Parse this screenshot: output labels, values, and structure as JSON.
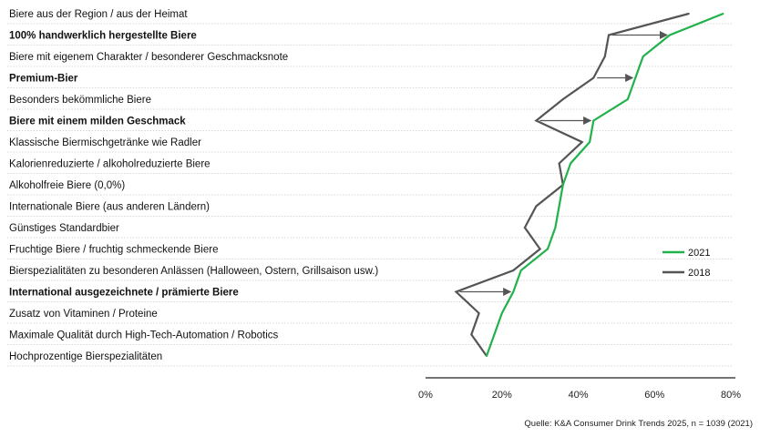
{
  "chart_data": {
    "type": "line",
    "orientation": "horizontal",
    "categories": [
      {
        "label": "Biere aus der Region / aus der Heimat",
        "bold": false
      },
      {
        "label": "100% handwerklich hergestellte Biere",
        "bold": true
      },
      {
        "label": "Biere mit eigenem Charakter / besonderer Geschmacksnote",
        "bold": false
      },
      {
        "label": "Premium-Bier",
        "bold": true
      },
      {
        "label": "Besonders bekömmliche Biere",
        "bold": false
      },
      {
        "label": "Biere mit einem milden Geschmack",
        "bold": true
      },
      {
        "label": "Klassische Biermischgetränke wie Radler",
        "bold": false
      },
      {
        "label": "Kalorienreduzierte / alkoholreduzierte Biere",
        "bold": false
      },
      {
        "label": "Alkoholfreie Biere (0,0%)",
        "bold": false
      },
      {
        "label": "Internationale Biere (aus anderen Ländern)",
        "bold": false
      },
      {
        "label": "Günstiges Standardbier",
        "bold": false
      },
      {
        "label": "Fruchtige Biere / fruchtig schmeckende Biere",
        "bold": false
      },
      {
        "label": "Bierspezialitäten zu besonderen Anlässen (Halloween, Ostern, Grillsaison usw.)",
        "bold": false
      },
      {
        "label": "International ausgezeichnete / prämierte Biere",
        "bold": true
      },
      {
        "label": "Zusatz von Vitaminen / Proteine",
        "bold": false
      },
      {
        "label": "Maximale Qualität durch High-Tech-Automation / Robotics",
        "bold": false
      },
      {
        "label": "Hochprozentige Bierspezialitäten",
        "bold": false
      }
    ],
    "series": [
      {
        "name": "2021",
        "color": "#22b24c",
        "values": [
          78,
          64,
          57,
          55,
          53,
          44,
          43,
          38,
          36,
          35,
          34,
          32,
          25,
          23,
          20,
          18,
          16
        ]
      },
      {
        "name": "2018",
        "color": "#555555",
        "values": [
          69,
          48,
          47,
          44,
          36,
          29,
          41,
          35,
          36,
          29,
          26,
          30,
          23,
          8,
          14,
          12,
          16
        ]
      }
    ],
    "arrows_on": [
      "100% handwerklich hergestellte Biere",
      "Premium-Bier",
      "Biere mit einem milden Geschmack",
      "International ausgezeichnete / prämierte Biere"
    ],
    "x_ticks": [
      "0%",
      "20%",
      "40%",
      "60%",
      "80%"
    ],
    "xlim": [
      0,
      80
    ],
    "legend_position": "bottom-right",
    "gridlines": "dotted horizontal per category"
  },
  "source": "Quelle: K&A Consumer Drink Trends 2025, n = 1039 (2021)"
}
